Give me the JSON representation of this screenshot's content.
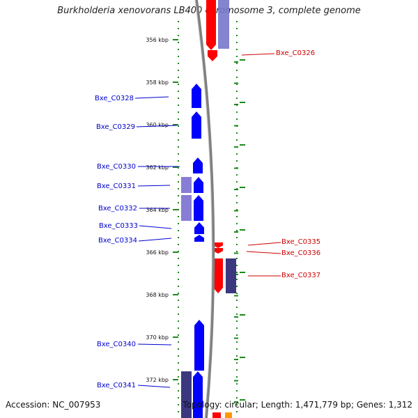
{
  "title": "Burkholderia xenovorans LB400 chromosome 3, complete genome",
  "footer": {
    "accession": "Accession: NC_007953",
    "summary": "Topology: circular; Length: 1,471,779 bp; Genes: 1,312"
  },
  "colors": {
    "forward": "#ff0000",
    "reverse": "#0000ff",
    "forward_faded": "#7777cc",
    "reverse_faded": "#7b6fd0",
    "dark_cds": "#3b3880",
    "tick": "#1a8a1a",
    "forward_label": "#cc0000",
    "reverse_label": "#0000cc",
    "backbone": "#808080"
  },
  "scale": {
    "ticks": [
      {
        "label": "356 kbp",
        "kbp": 356
      },
      {
        "label": "358 kbp",
        "kbp": 358
      },
      {
        "label": "360 kbp",
        "kbp": 360
      },
      {
        "label": "362 kbp",
        "kbp": 362
      },
      {
        "label": "364 kbp",
        "kbp": 364
      },
      {
        "label": "366 kbp",
        "kbp": 366
      },
      {
        "label": "368 kbp",
        "kbp": 368
      },
      {
        "label": "370 kbp",
        "kbp": 370
      },
      {
        "label": "372 kbp",
        "kbp": 372
      }
    ]
  },
  "genes": [
    {
      "name": "Bxe_C0326",
      "strand": "forward"
    },
    {
      "name": "Bxe_C0328",
      "strand": "reverse"
    },
    {
      "name": "Bxe_C0329",
      "strand": "reverse"
    },
    {
      "name": "Bxe_C0330",
      "strand": "reverse"
    },
    {
      "name": "Bxe_C0331",
      "strand": "reverse"
    },
    {
      "name": "Bxe_C0332",
      "strand": "reverse"
    },
    {
      "name": "Bxe_C0333",
      "strand": "reverse"
    },
    {
      "name": "Bxe_C0334",
      "strand": "reverse"
    },
    {
      "name": "Bxe_C0335",
      "strand": "forward"
    },
    {
      "name": "Bxe_C0336",
      "strand": "forward"
    },
    {
      "name": "Bxe_C0337",
      "strand": "forward"
    },
    {
      "name": "Bxe_C0340",
      "strand": "reverse"
    },
    {
      "name": "Bxe_C0341",
      "strand": "reverse"
    }
  ]
}
